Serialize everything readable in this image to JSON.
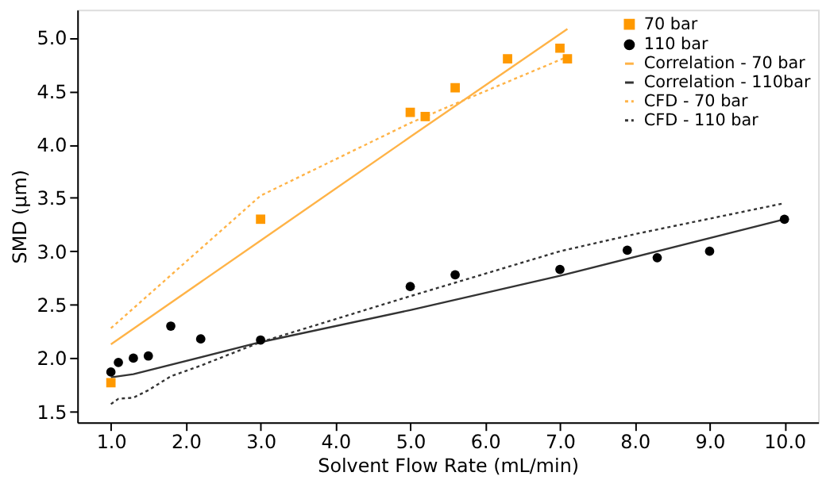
{
  "chart_data": {
    "type": "line",
    "xlabel": "Solvent Flow Rate (mL/min)",
    "ylabel": "SMD (µm)",
    "xlim": [
      0.55,
      10.45
    ],
    "ylim": [
      1.4,
      5.26
    ],
    "xticks": [
      {
        "value": 1,
        "label": "1.0"
      },
      {
        "value": 2,
        "label": "2.0"
      },
      {
        "value": 3,
        "label": "3.0"
      },
      {
        "value": 4,
        "label": "4.0"
      },
      {
        "value": 5,
        "label": "5.0"
      },
      {
        "value": 6,
        "label": "6.0"
      },
      {
        "value": 7,
        "label": "7.0"
      },
      {
        "value": 8,
        "label": "8.0"
      },
      {
        "value": 9,
        "label": "9.0"
      },
      {
        "value": 10,
        "label": "10.0"
      }
    ],
    "yticks": [
      1.5,
      {
        "value": 2,
        "label": "2.0"
      },
      2.5,
      {
        "value": 3,
        "label": "3.0"
      },
      3.5,
      {
        "value": 4,
        "label": "4.0"
      },
      4.5,
      {
        "value": 5,
        "label": "5.0"
      }
    ],
    "grid": false,
    "legend": "top right",
    "series": [
      {
        "name": "70 bar",
        "type": "scatter",
        "marker": "square",
        "color": "#ff9900",
        "x": [
          1.0,
          3.0,
          5.0,
          5.2,
          5.6,
          6.3,
          7.0,
          7.1
        ],
        "values": [
          1.77,
          3.3,
          4.3,
          4.26,
          4.53,
          4.8,
          4.9,
          4.8
        ]
      },
      {
        "name": "110 bar",
        "type": "scatter",
        "marker": "circle",
        "color": "#000000",
        "x": [
          1.0,
          1.1,
          1.3,
          1.5,
          1.8,
          2.2,
          3.0,
          5.0,
          5.6,
          7.0,
          7.9,
          8.3,
          9.0,
          10.0
        ],
        "values": [
          1.87,
          1.96,
          2.0,
          2.02,
          2.3,
          2.18,
          2.17,
          2.67,
          2.78,
          2.83,
          3.01,
          2.94,
          3.0,
          3.3
        ]
      },
      {
        "name": "Correlation - 70 bar",
        "line_style": "solid",
        "color": "#ffb347",
        "x": [
          1.0,
          3.0,
          5.0,
          7.1
        ],
        "values": [
          2.13,
          3.1,
          4.07,
          5.08
        ]
      },
      {
        "name": "Correlation - 110bar",
        "line_style": "solid",
        "color": "#333333",
        "x": [
          1.0,
          1.3,
          3.0,
          5.0,
          7.0,
          10.0
        ],
        "values": [
          1.82,
          1.85,
          2.15,
          2.45,
          2.77,
          3.3
        ]
      },
      {
        "name": "CFD - 70 bar",
        "line_style": "dotted",
        "color": "#ffb347",
        "x": [
          1.0,
          3.0,
          5.0,
          5.5,
          7.1
        ],
        "values": [
          2.28,
          3.52,
          4.2,
          4.35,
          4.82
        ]
      },
      {
        "name": "CFD - 110 bar",
        "line_style": "dotted",
        "color": "#333333",
        "x": [
          1.0,
          1.1,
          1.3,
          1.5,
          1.8,
          2.2,
          3.0,
          5.0,
          7.0,
          8.0,
          10.0
        ],
        "values": [
          1.57,
          1.62,
          1.63,
          1.7,
          1.83,
          1.93,
          2.15,
          2.58,
          3.0,
          3.16,
          3.45
        ]
      }
    ]
  }
}
